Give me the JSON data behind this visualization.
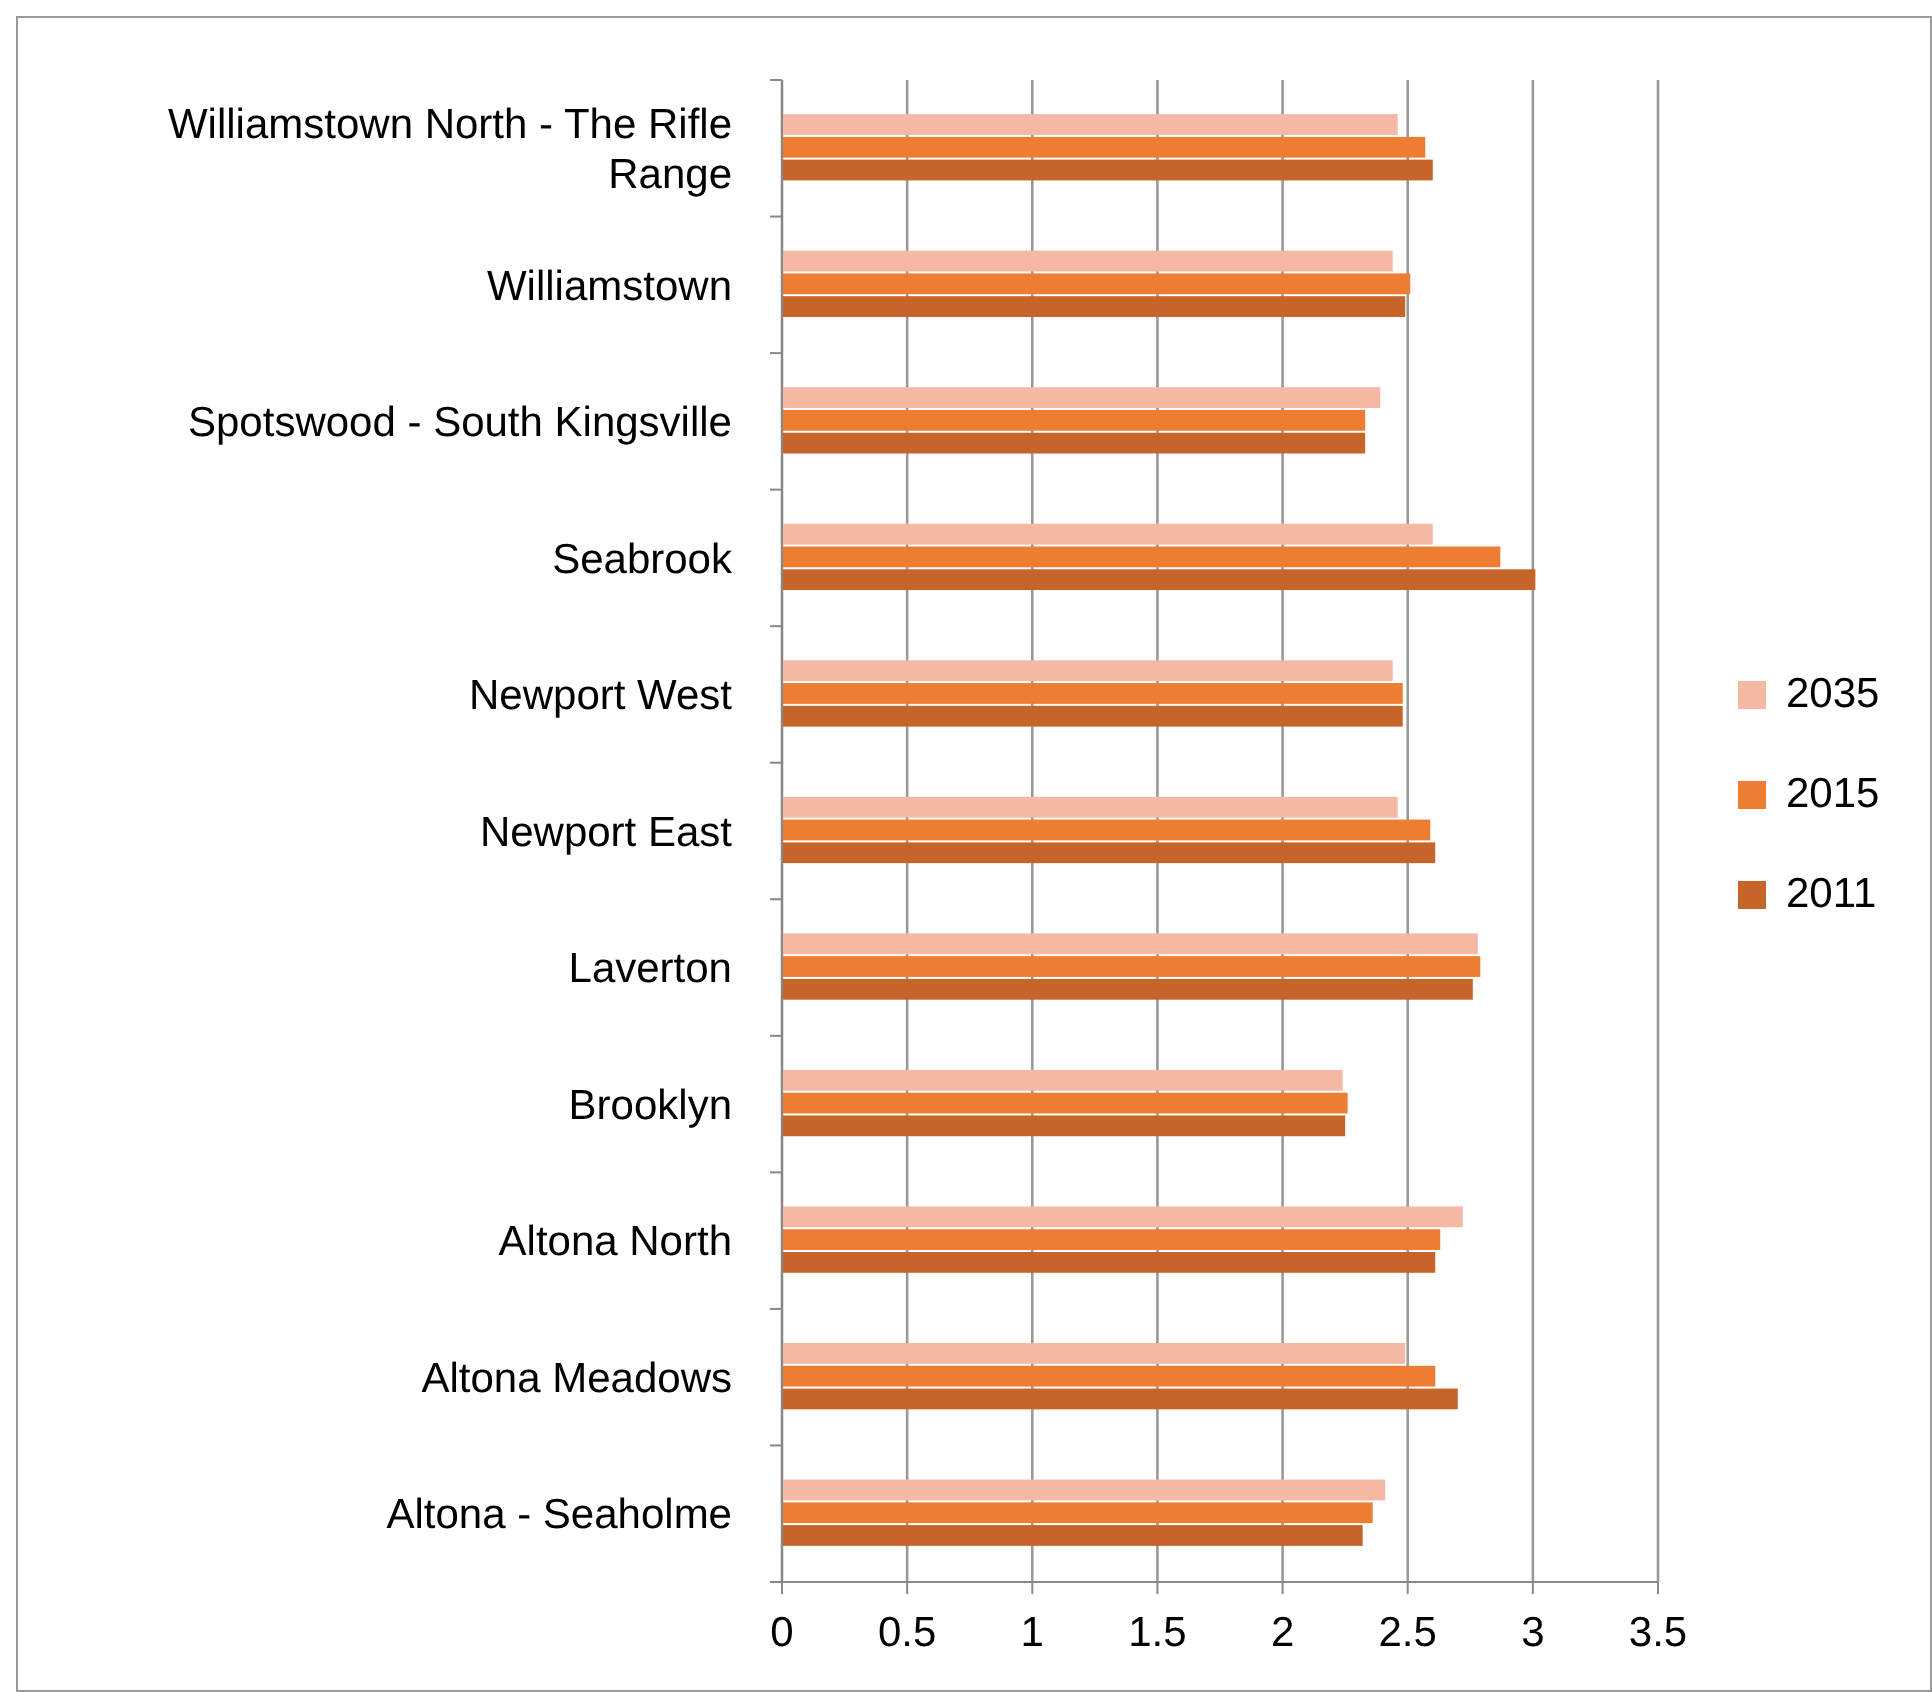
{
  "chart_data": {
    "type": "bar",
    "orientation": "horizontal",
    "categories": [
      "Williamstown North - The Rifle Range",
      "Williamstown",
      "Spotswood - South Kingsville",
      "Seabrook",
      "Newport West",
      "Newport East",
      "Laverton",
      "Brooklyn",
      "Altona North",
      "Altona Meadows",
      "Altona - Seaholme"
    ],
    "series": [
      {
        "name": "2035",
        "color": "#f4b8a4",
        "values": [
          2.46,
          2.44,
          2.39,
          2.6,
          2.44,
          2.46,
          2.78,
          2.24,
          2.72,
          2.49,
          2.41
        ]
      },
      {
        "name": "2015",
        "color": "#ed7d31",
        "values": [
          2.57,
          2.51,
          2.33,
          2.87,
          2.48,
          2.59,
          2.79,
          2.26,
          2.63,
          2.61,
          2.36
        ]
      },
      {
        "name": "2011",
        "color": "#c5652a",
        "values": [
          2.6,
          2.49,
          2.33,
          3.01,
          2.48,
          2.61,
          2.76,
          2.25,
          2.61,
          2.7,
          2.32
        ]
      }
    ],
    "xlim": [
      0,
      3.5
    ],
    "xticks": [
      0,
      0.5,
      1,
      1.5,
      2,
      2.5,
      3,
      3.5
    ],
    "grid": "x",
    "legend": "right"
  }
}
